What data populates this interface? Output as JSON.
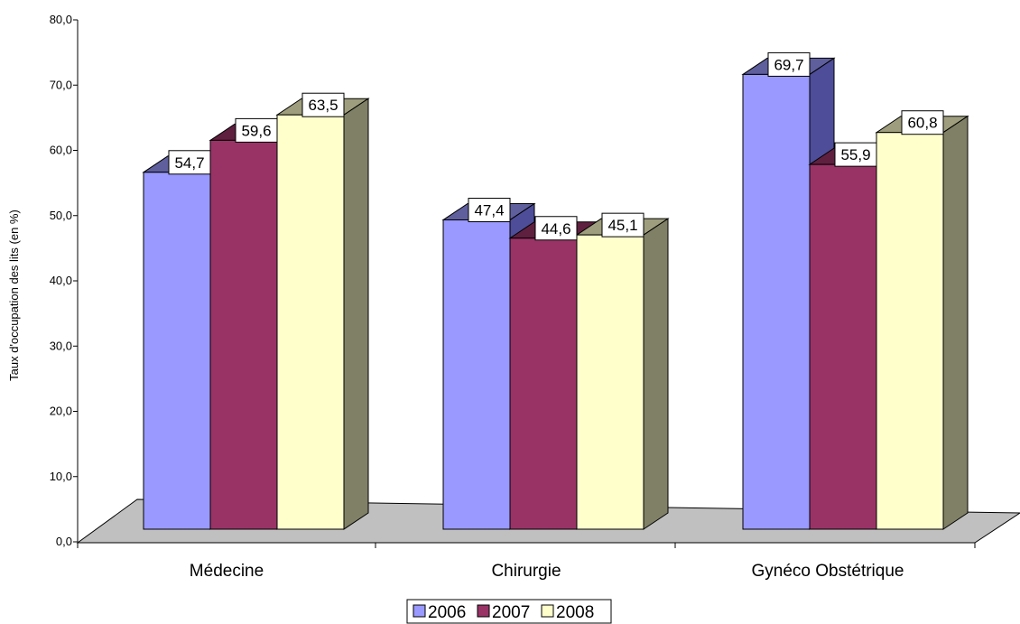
{
  "chart_data": {
    "type": "bar",
    "categories": [
      "Médecine",
      "Chirurgie",
      "Gynéco Obstétrique"
    ],
    "series": [
      {
        "name": "2006",
        "values": [
          54.7,
          47.4,
          69.7
        ],
        "color": "#9999FF"
      },
      {
        "name": "2007",
        "values": [
          59.6,
          44.6,
          55.9
        ],
        "color": "#993366"
      },
      {
        "name": "2008",
        "values": [
          63.5,
          45.1,
          60.8
        ],
        "color": "#FFFFCC"
      }
    ],
    "value_labels": [
      [
        "54,7",
        "47,4",
        "69,7"
      ],
      [
        "59,6",
        "44,6",
        "55,9"
      ],
      [
        "63,5",
        "45,1",
        "60,8"
      ]
    ],
    "ylabel": "Taux d'occupation des lits (en %)",
    "xlabel": "",
    "ylim": [
      0,
      80
    ],
    "yticks": [
      "0,0",
      "10,0",
      "20,0",
      "30,0",
      "40,0",
      "50,0",
      "60,0",
      "70,0",
      "80,0"
    ],
    "grid": false,
    "legend_position": "bottom",
    "style": "3d-clustered-column",
    "floor_color": "#C0C0C0"
  }
}
